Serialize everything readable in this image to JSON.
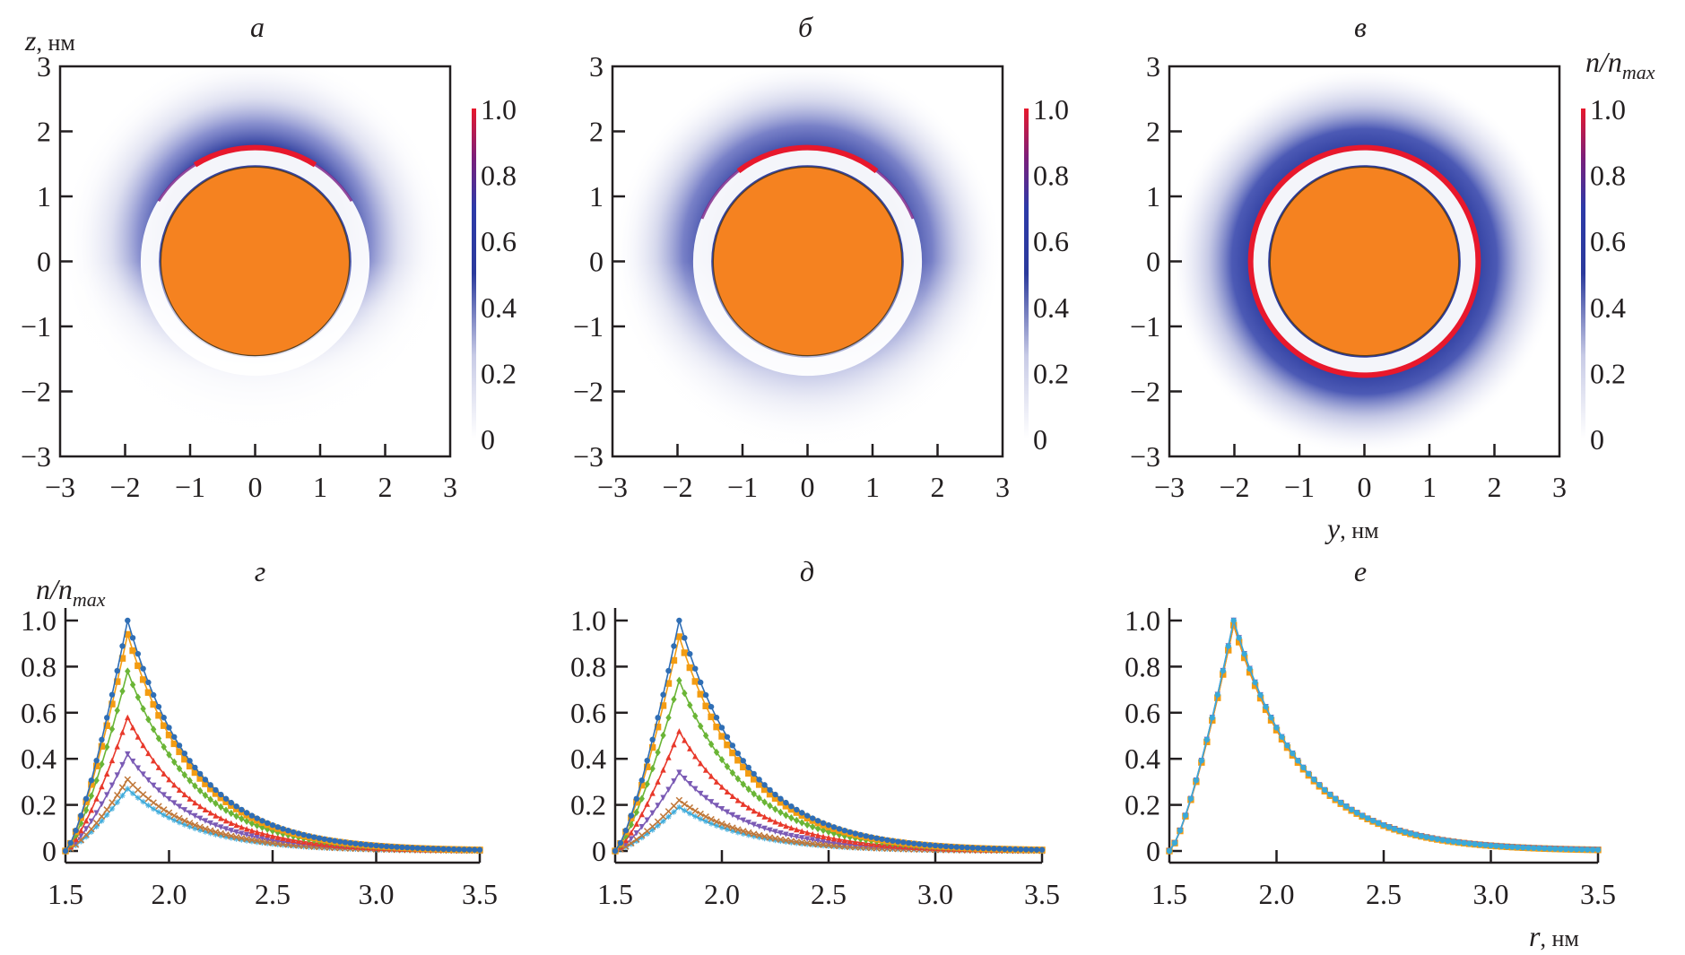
{
  "figure": {
    "density_unit_label": "n/n",
    "density_unit_sub": "max",
    "z_axis_var": "z",
    "y_axis_var": "y",
    "r_axis_var": "r",
    "unit": ", нм"
  },
  "chart_data": [
    {
      "type": "heatmap",
      "panel": "a",
      "title": "а",
      "xlabel": "",
      "ylabel": "z, нм",
      "xlim": [
        -3,
        3
      ],
      "ylim": [
        -3,
        3
      ],
      "xticks": [
        "−3",
        "−2",
        "−1",
        "0",
        "1",
        "2",
        "3"
      ],
      "yticks": [
        "−3",
        "−2",
        "−1",
        "0",
        "1",
        "2",
        "3"
      ],
      "sphere": {
        "center": [
          0,
          0
        ],
        "radius": 1.45,
        "color": "#f58220"
      },
      "density_shell": {
        "peak_radius": 1.75,
        "extent": "upper half (asymmetric, concentrated at top)",
        "angular_coverage": "top arc ~±60°"
      },
      "colorbar": {
        "ticks": [
          "0",
          "0.2",
          "0.4",
          "0.6",
          "0.8",
          "1.0"
        ],
        "range": [
          0,
          1
        ],
        "colors": [
          "#ffffff",
          "#2b3a9c",
          "#e8182c"
        ],
        "label": ""
      }
    },
    {
      "type": "heatmap",
      "panel": "b",
      "title": "б",
      "xlabel": "",
      "ylabel": "",
      "xlim": [
        -3,
        3
      ],
      "ylim": [
        -3,
        3
      ],
      "xticks": [
        "−3",
        "−2",
        "−1",
        "0",
        "1",
        "2",
        "3"
      ],
      "yticks": [
        "−3",
        "−2",
        "−1",
        "0",
        "1",
        "2",
        "3"
      ],
      "sphere": {
        "center": [
          0,
          0
        ],
        "radius": 1.45,
        "color": "#f58220"
      },
      "density_shell": {
        "peak_radius": 1.75,
        "extent": "mostly upper half, weaker asymmetry",
        "angular_coverage": "top arc ~±70°"
      },
      "colorbar": {
        "ticks": [
          "0",
          "0.2",
          "0.4",
          "0.6",
          "0.8",
          "1.0"
        ],
        "range": [
          0,
          1
        ],
        "colors": [
          "#ffffff",
          "#2b3a9c",
          "#e8182c"
        ],
        "label": ""
      }
    },
    {
      "type": "heatmap",
      "panel": "c",
      "title": "в",
      "xlabel": "y, нм",
      "ylabel": "",
      "xlim": [
        -3,
        3
      ],
      "ylim": [
        -3,
        3
      ],
      "xticks": [
        "−3",
        "−2",
        "−1",
        "0",
        "1",
        "2",
        "3"
      ],
      "yticks": [
        "−3",
        "−2",
        "−1",
        "0",
        "1",
        "2",
        "3"
      ],
      "sphere": {
        "center": [
          0,
          0
        ],
        "radius": 1.45,
        "color": "#f58220"
      },
      "density_shell": {
        "peak_radius": 1.75,
        "extent": "full symmetric ring",
        "angular_coverage": "360°"
      },
      "colorbar": {
        "ticks": [
          "0",
          "0.2",
          "0.4",
          "0.6",
          "0.8",
          "1.0"
        ],
        "range": [
          0,
          1
        ],
        "colors": [
          "#ffffff",
          "#2b3a9c",
          "#e8182c"
        ],
        "label": "n/nmax"
      }
    },
    {
      "type": "line",
      "panel": "d",
      "title": "г",
      "xlabel": "",
      "ylabel": "n/nmax",
      "xlim": [
        1.5,
        3.5
      ],
      "ylim": [
        0,
        1.0
      ],
      "xticks": [
        "1.5",
        "2.0",
        "2.5",
        "3.0",
        "3.5"
      ],
      "yticks": [
        "0",
        "0.2",
        "0.4",
        "0.6",
        "0.8",
        "1.0"
      ],
      "peak_r": 1.8,
      "series": [
        {
          "name": "s1",
          "color": "#2f6eb5",
          "marker": "circle",
          "peak": 1.0
        },
        {
          "name": "s2",
          "color": "#f39c12",
          "marker": "square",
          "peak": 0.94
        },
        {
          "name": "s3",
          "color": "#6ab536",
          "marker": "diamond",
          "peak": 0.78
        },
        {
          "name": "s4",
          "color": "#e8392b",
          "marker": "triangle",
          "peak": 0.58
        },
        {
          "name": "s5",
          "color": "#7b5bb5",
          "marker": "triangle-down",
          "peak": 0.42
        },
        {
          "name": "s6",
          "color": "#c0783a",
          "marker": "x",
          "peak": 0.31
        },
        {
          "name": "s7",
          "color": "#3aa9d9",
          "marker": "star",
          "peak": 0.27
        }
      ]
    },
    {
      "type": "line",
      "panel": "e",
      "title": "д",
      "xlabel": "",
      "ylabel": "",
      "xlim": [
        1.5,
        3.5
      ],
      "ylim": [
        0,
        1.0
      ],
      "xticks": [
        "1.5",
        "2.0",
        "2.5",
        "3.0",
        "3.5"
      ],
      "yticks": [
        "0",
        "0.2",
        "0.4",
        "0.6",
        "0.8",
        "1.0"
      ],
      "peak_r": 1.8,
      "series": [
        {
          "name": "s1",
          "color": "#2f6eb5",
          "marker": "circle",
          "peak": 1.0
        },
        {
          "name": "s2",
          "color": "#f39c12",
          "marker": "square",
          "peak": 0.93
        },
        {
          "name": "s3",
          "color": "#6ab536",
          "marker": "diamond",
          "peak": 0.74
        },
        {
          "name": "s4",
          "color": "#e8392b",
          "marker": "triangle",
          "peak": 0.52
        },
        {
          "name": "s5",
          "color": "#7b5bb5",
          "marker": "triangle-down",
          "peak": 0.34
        },
        {
          "name": "s6",
          "color": "#c0783a",
          "marker": "x",
          "peak": 0.22
        },
        {
          "name": "s7",
          "color": "#3aa9d9",
          "marker": "star",
          "peak": 0.19
        }
      ]
    },
    {
      "type": "line",
      "panel": "f",
      "title": "е",
      "xlabel": "r, нм",
      "ylabel": "",
      "xlim": [
        1.5,
        3.5
      ],
      "ylim": [
        0,
        1.0
      ],
      "xticks": [
        "1.5",
        "2.0",
        "2.5",
        "3.0",
        "3.5"
      ],
      "yticks": [
        "0",
        "0.2",
        "0.4",
        "0.6",
        "0.8",
        "1.0"
      ],
      "peak_r": 1.8,
      "series": [
        {
          "name": "s1",
          "color": "#3aa9d9",
          "marker": "circle",
          "peak": 1.0
        },
        {
          "name": "s2",
          "color": "#7b5bb5",
          "marker": "triangle-down",
          "peak": 1.0
        },
        {
          "name": "s3",
          "color": "#f39c12",
          "marker": "square",
          "peak": 0.98
        },
        {
          "name": "s4",
          "color": "#e8392b",
          "marker": "triangle",
          "peak": 0.98
        }
      ]
    }
  ]
}
